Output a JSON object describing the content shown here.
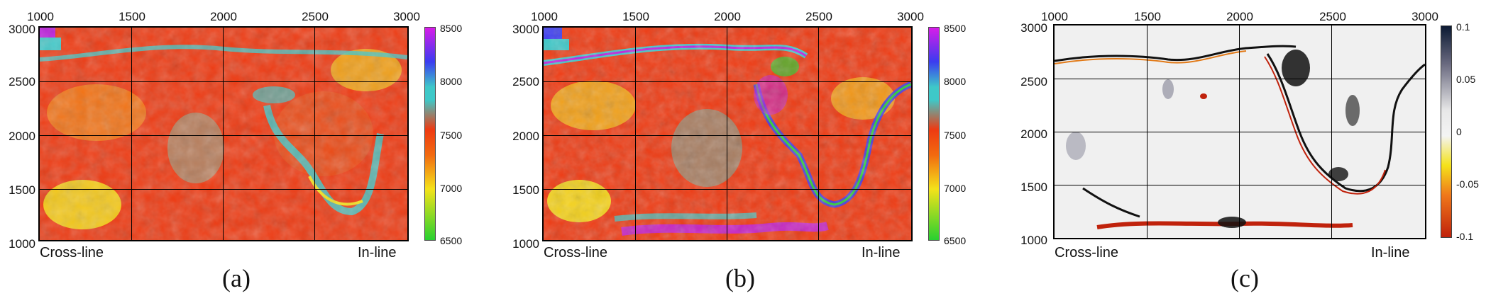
{
  "panels": [
    {
      "id": "a",
      "caption": "(a)",
      "x_ticks": [
        "1000",
        "1500",
        "2000",
        "2500",
        "3000"
      ],
      "y_ticks": [
        "3000",
        "2500",
        "2000",
        "1500",
        "1000"
      ],
      "x_axis_name": "Cross-line",
      "y_axis_name": "In-line",
      "colorbar_ticks": [
        "8500",
        "8000",
        "7500",
        "7000",
        "6500"
      ],
      "colormap": "rainbow (green-yellow-red-cyan-blue-magenta)"
    },
    {
      "id": "b",
      "caption": "(b)",
      "x_ticks": [
        "1000",
        "1500",
        "2000",
        "2500",
        "3000"
      ],
      "y_ticks": [
        "3000",
        "2500",
        "2000",
        "1500",
        "1000"
      ],
      "x_axis_name": "Cross-line",
      "y_axis_name": "In-line",
      "colorbar_ticks": [
        "8500",
        "8000",
        "7500",
        "7000",
        "6500"
      ],
      "colormap": "rainbow (green-yellow-red-cyan-blue-magenta)"
    },
    {
      "id": "c",
      "caption": "(c)",
      "x_ticks": [
        "1000",
        "1500",
        "2000",
        "2500",
        "3000"
      ],
      "y_ticks": [
        "3000",
        "2500",
        "2000",
        "1500",
        "1000"
      ],
      "x_axis_name": "Cross-line",
      "y_axis_name": "In-line",
      "colorbar_ticks": [
        "0.1",
        "0.05",
        "0",
        "-0.05",
        "-0.1"
      ],
      "colormap": "diverging (red-orange-yellow-white-gray-black)"
    }
  ],
  "colors": {
    "red_bg": "#ee3a12",
    "orange": "#f26a10",
    "yellow": "#f4e21a",
    "cyan": "#3ec8c8",
    "blue": "#3b3bf0",
    "magenta": "#c01ce0",
    "green": "#28d030",
    "diff_bg": "#f0f0f0",
    "diff_dark": "#111111",
    "diff_red": "#c0220c"
  }
}
